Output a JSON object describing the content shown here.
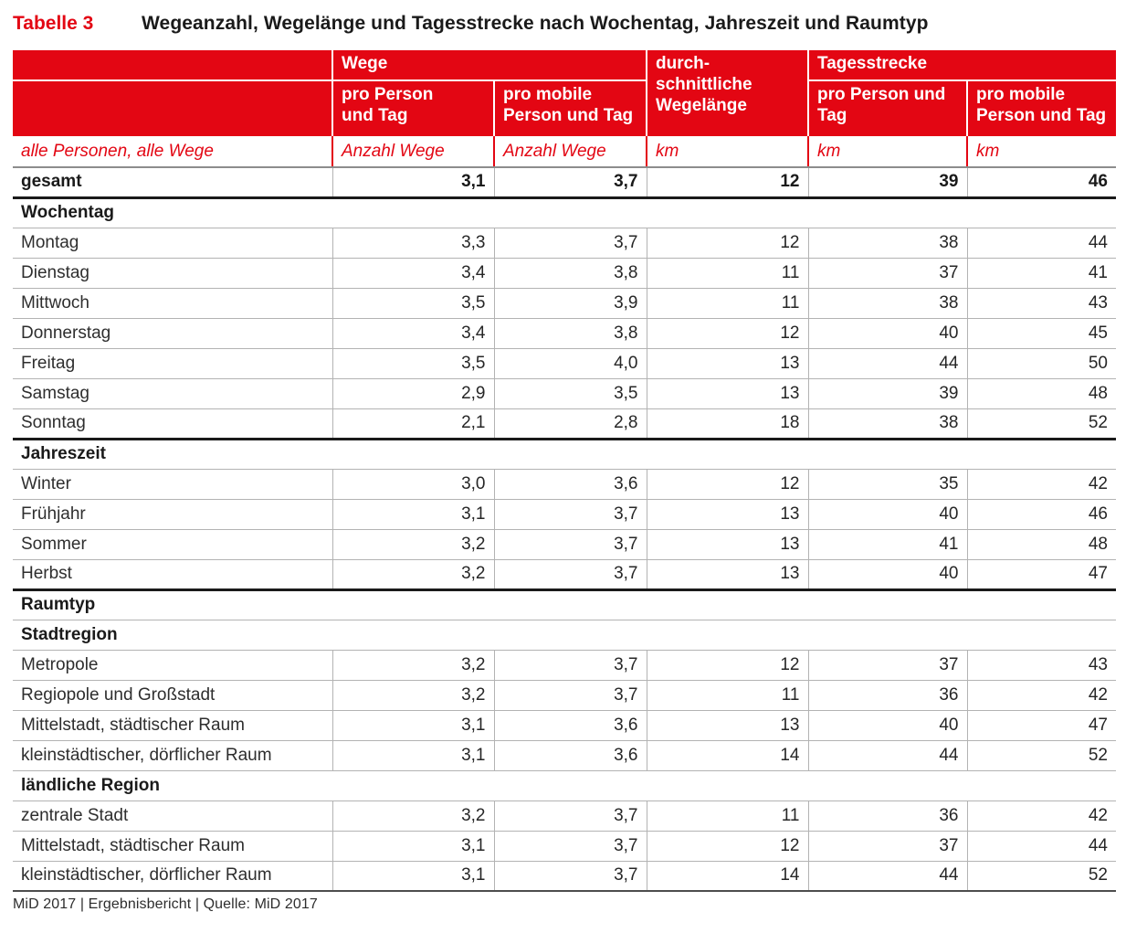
{
  "title": {
    "tag": "Tabelle 3",
    "text": "Wegeanzahl, Wegelänge und Tagesstrecke nach Wochentag, Jahreszeit und Raumtyp"
  },
  "colors": {
    "red": "#e30613",
    "grid": "#b3b3b3",
    "heavy": "#1a1a1a"
  },
  "header": {
    "group_wege": "Wege",
    "group_wegelaenge": "durch-\nschnittliche\nWegelänge",
    "group_tagesstrecke": "Tagesstrecke",
    "sub_labels": [
      "pro Person\nund Tag",
      "pro mobile\nPerson und Tag",
      "pro Person und\nTag",
      "pro mobile\nPerson und Tag"
    ]
  },
  "unit_row": {
    "label": "alle Personen, alle Wege",
    "units": [
      "Anzahl Wege",
      "Anzahl Wege",
      "km",
      "km",
      "km"
    ]
  },
  "table": {
    "blocks": [
      {
        "rows": [
          {
            "label": "gesamt",
            "bold": true,
            "values": [
              "3,1",
              "3,7",
              "12",
              "39",
              "46"
            ]
          }
        ]
      },
      {
        "section": "Wochentag",
        "rows": [
          {
            "label": "Montag",
            "values": [
              "3,3",
              "3,7",
              "12",
              "38",
              "44"
            ]
          },
          {
            "label": "Dienstag",
            "values": [
              "3,4",
              "3,8",
              "11",
              "37",
              "41"
            ]
          },
          {
            "label": "Mittwoch",
            "values": [
              "3,5",
              "3,9",
              "11",
              "38",
              "43"
            ]
          },
          {
            "label": "Donnerstag",
            "values": [
              "3,4",
              "3,8",
              "12",
              "40",
              "45"
            ]
          },
          {
            "label": "Freitag",
            "values": [
              "3,5",
              "4,0",
              "13",
              "44",
              "50"
            ]
          },
          {
            "label": "Samstag",
            "values": [
              "2,9",
              "3,5",
              "13",
              "39",
              "48"
            ]
          },
          {
            "label": "Sonntag",
            "values": [
              "2,1",
              "2,8",
              "18",
              "38",
              "52"
            ]
          }
        ]
      },
      {
        "section": "Jahreszeit",
        "rows": [
          {
            "label": "Winter",
            "values": [
              "3,0",
              "3,6",
              "12",
              "35",
              "42"
            ]
          },
          {
            "label": "Frühjahr",
            "values": [
              "3,1",
              "3,7",
              "13",
              "40",
              "46"
            ]
          },
          {
            "label": "Sommer",
            "values": [
              "3,2",
              "3,7",
              "13",
              "41",
              "48"
            ]
          },
          {
            "label": "Herbst",
            "values": [
              "3,2",
              "3,7",
              "13",
              "40",
              "47"
            ]
          }
        ]
      },
      {
        "section": "Raumtyp",
        "subblocks": [
          {
            "section": "Stadtregion",
            "rows": [
              {
                "label": "Metropole",
                "values": [
                  "3,2",
                  "3,7",
                  "12",
                  "37",
                  "43"
                ]
              },
              {
                "label": "Regiopole und Großstadt",
                "values": [
                  "3,2",
                  "3,7",
                  "11",
                  "36",
                  "42"
                ]
              },
              {
                "label": "Mittelstadt, städtischer Raum",
                "values": [
                  "3,1",
                  "3,6",
                  "13",
                  "40",
                  "47"
                ]
              },
              {
                "label": "kleinstädtischer, dörflicher Raum",
                "values": [
                  "3,1",
                  "3,6",
                  "14",
                  "44",
                  "52"
                ]
              }
            ]
          },
          {
            "section": "ländliche Region",
            "rows": [
              {
                "label": "zentrale Stadt",
                "values": [
                  "3,2",
                  "3,7",
                  "11",
                  "36",
                  "42"
                ]
              },
              {
                "label": "Mittelstadt, städtischer Raum",
                "values": [
                  "3,1",
                  "3,7",
                  "12",
                  "37",
                  "44"
                ]
              },
              {
                "label": "kleinstädtischer, dörflicher Raum",
                "values": [
                  "3,1",
                  "3,7",
                  "14",
                  "44",
                  "52"
                ]
              }
            ]
          }
        ]
      }
    ]
  },
  "footer": "MiD 2017 | Ergebnisbericht | Quelle: MiD 2017"
}
